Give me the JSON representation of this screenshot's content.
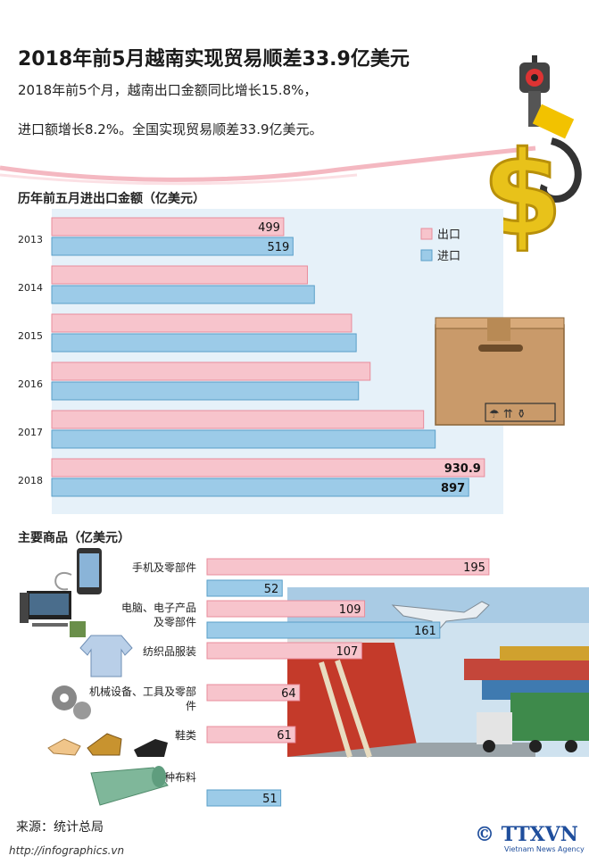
{
  "header": {
    "title": "2018年前5月越南实现贸易顺差33.9亿美元",
    "summary_line1": "2018年前5个月，越南出口金额同比增长15.8%，",
    "summary_line2": "进口额增长8.2%。全国实现贸易顺差33.9亿美元。"
  },
  "colors": {
    "export": "#f7c4cc",
    "export_border": "#e88c9b",
    "import": "#9ccbe8",
    "import_border": "#5a9fc9",
    "panel": "#e6f1f9"
  },
  "chart_data": [
    {
      "type": "bar",
      "orientation": "horizontal",
      "title": "历年前五月进出口金额（亿美元）",
      "categories": [
        "2013",
        "2014",
        "2015",
        "2016",
        "2017",
        "2018"
      ],
      "series": [
        {
          "name": "出口",
          "values": [
            499,
            550,
            645,
            685,
            800,
            930.9
          ]
        },
        {
          "name": "进口",
          "values": [
            519,
            565,
            655,
            660,
            825,
            897
          ]
        }
      ],
      "data_labels": [
        [
          "499",
          "",
          "",
          "",
          "",
          "930.9"
        ],
        [
          "519",
          "",
          "",
          "",
          "",
          "897"
        ]
      ],
      "xlim": [
        0,
        960
      ],
      "legend": "top-right",
      "grid": false
    },
    {
      "type": "bar",
      "orientation": "horizontal",
      "title": "主要商品（亿美元）",
      "categories": [
        "手机及零部件",
        "电脑、电子产品及零部件",
        "纺织品服装",
        "机械设备、工具及零部件",
        "鞋类",
        "各种布料"
      ],
      "category_lines": [
        [
          "手机及零部件"
        ],
        [
          "电脑、电子产品",
          "及零部件"
        ],
        [
          "纺织品服装"
        ],
        [
          "机械设备、工具及零部",
          "件"
        ],
        [
          "鞋类"
        ],
        [
          "各种布料"
        ]
      ],
      "series": [
        {
          "name": "出口",
          "values": [
            195,
            109,
            107,
            64,
            61,
            null
          ]
        },
        {
          "name": "进口",
          "values": [
            52,
            161,
            null,
            null,
            null,
            51
          ]
        }
      ],
      "xlim": [
        0,
        200
      ],
      "grid": false
    }
  ],
  "footer": {
    "source": "来源：统计总局",
    "url": "http://infographics.vn",
    "brand": "© TTXVN",
    "brand_sub": "Vietnam News Agency"
  },
  "icons": [
    "crane-hook-icon",
    "dollar-sign-icon",
    "cardboard-box-icon",
    "smartphone-icon",
    "computer-icon",
    "shirt-icon",
    "gear-icon",
    "shoes-icon",
    "fabric-roll-icon",
    "airplane-icon",
    "container-ship-icon",
    "truck-icon"
  ]
}
